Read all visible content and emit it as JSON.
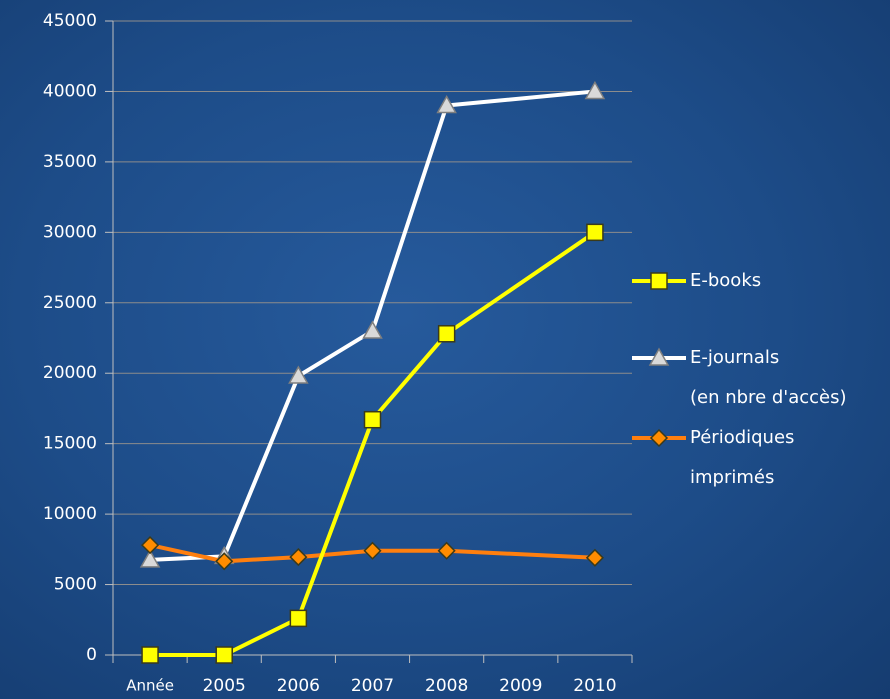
{
  "chart_data": {
    "type": "line",
    "categories": [
      "Année",
      "2005",
      "2006",
      "2007",
      "2008",
      "2009",
      "2010"
    ],
    "series": [
      {
        "name": "E-books",
        "color": "#ffff00",
        "marker": "square",
        "marker_color": "#ffff00",
        "values": [
          0,
          0,
          2600,
          16700,
          22800,
          null,
          30000
        ]
      },
      {
        "name": "E-journals\n(en nbre d'accès)",
        "color": "#ffffff",
        "marker": "triangle",
        "marker_color": "#d9d9d9",
        "values": [
          6750,
          7000,
          19800,
          23000,
          39000,
          null,
          40000
        ]
      },
      {
        "name": "Périodiques\nimprimés",
        "color": "#ff7f0e",
        "marker": "diamond",
        "marker_color": "#ff8c00",
        "values": [
          7800,
          6650,
          6950,
          7400,
          7400,
          null,
          6900
        ]
      }
    ],
    "connect_gaps": true,
    "ylim": [
      0,
      45000
    ],
    "yticks": [
      0,
      5000,
      10000,
      15000,
      20000,
      25000,
      30000,
      35000,
      40000,
      45000
    ],
    "grid": true,
    "legend": "right"
  }
}
